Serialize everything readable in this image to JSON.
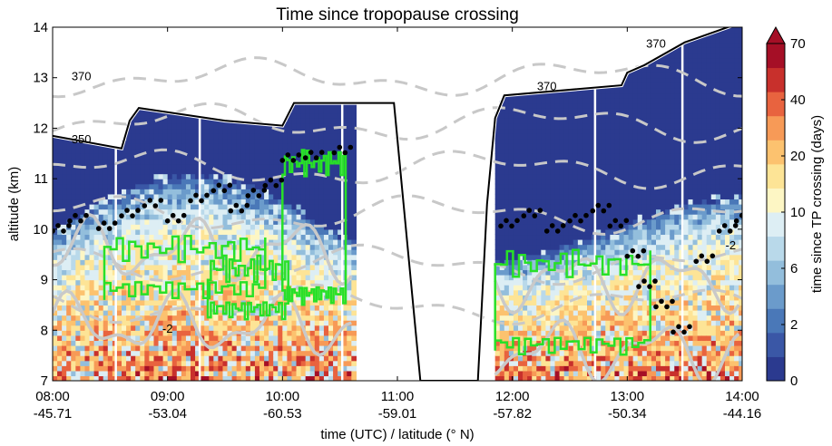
{
  "chart_data": {
    "type": "heatmap",
    "title": "Time since tropopause crossing",
    "xlabel": "time (UTC) / latitude (° N)",
    "ylabel": "altitude (km)",
    "x_ticks": [
      {
        "time": "08:00",
        "lat": "-45.71"
      },
      {
        "time": "09:00",
        "lat": "-53.04"
      },
      {
        "time": "10:00",
        "lat": "-60.53"
      },
      {
        "time": "11:00",
        "lat": "-59.01"
      },
      {
        "time": "12:00",
        "lat": "-57.82"
      },
      {
        "time": "13:00",
        "lat": "-50.34"
      },
      {
        "time": "14:00",
        "lat": "-44.16"
      }
    ],
    "xlim_hours": [
      8,
      14
    ],
    "ylim": [
      7,
      14
    ],
    "y_ticks": [
      7,
      8,
      9,
      10,
      11,
      12,
      13,
      14
    ],
    "colorbar": {
      "label": "time since TP crossing (days)",
      "extend": "max",
      "tick_labels": [
        "0",
        "2",
        "6",
        "10",
        "20",
        "40",
        "70"
      ],
      "levels": [
        0,
        1,
        2,
        4,
        6,
        8,
        10,
        15,
        20,
        30,
        40,
        50,
        60,
        70
      ],
      "colors": [
        "#2b3a8f",
        "#3a57a6",
        "#4a78b8",
        "#6b9bcb",
        "#93bedc",
        "#b9d9ea",
        "#ddeef4",
        "#fdf6c4",
        "#fde496",
        "#fcc26f",
        "#f79a57",
        "#e8633f",
        "#c8302c",
        "#a50f26"
      ]
    },
    "isentrope_labels": [
      "370",
      "350",
      "370",
      "370"
    ],
    "pv_contour_labels": [
      "-2",
      "-2"
    ],
    "annotations": {
      "tropopause_line": "flight / tropopause altitude (black-white line)",
      "green_contours": "outline of tropospheric-influence region",
      "black_dots": "observed tropopause points"
    },
    "data_windows_hours": [
      [
        8.0,
        10.62
      ],
      [
        11.85,
        14.0
      ]
    ],
    "flight_altitude_km": [
      [
        8.0,
        11.85
      ],
      [
        8.6,
        11.6
      ],
      [
        8.67,
        12.15
      ],
      [
        8.75,
        12.4
      ],
      [
        9.5,
        12.15
      ],
      [
        10.0,
        12.05
      ],
      [
        10.1,
        12.5
      ],
      [
        10.6,
        12.5
      ],
      [
        10.97,
        12.5
      ],
      [
        11.2,
        7.0
      ],
      [
        11.7,
        7.0
      ],
      [
        11.78,
        10.5
      ],
      [
        11.85,
        12.2
      ],
      [
        11.93,
        12.65
      ],
      [
        12.95,
        12.85
      ],
      [
        13.0,
        13.1
      ],
      [
        13.15,
        13.25
      ],
      [
        13.5,
        13.7
      ],
      [
        14.0,
        14.1
      ]
    ],
    "tropopause_dots_km": [
      [
        8.0,
        10.0
      ],
      [
        8.15,
        10.2
      ],
      [
        8.4,
        10.05
      ],
      [
        8.6,
        10.3
      ],
      [
        8.8,
        10.5
      ],
      [
        9.0,
        10.2
      ],
      [
        9.2,
        10.6
      ],
      [
        9.4,
        10.8
      ],
      [
        9.55,
        10.4
      ],
      [
        9.7,
        10.7
      ],
      [
        9.85,
        10.9
      ],
      [
        10.0,
        11.4
      ],
      [
        10.2,
        11.45
      ],
      [
        10.45,
        11.55
      ],
      [
        11.9,
        10.1
      ],
      [
        12.1,
        10.3
      ],
      [
        12.3,
        10.0
      ],
      [
        12.5,
        10.2
      ],
      [
        12.7,
        10.4
      ],
      [
        12.85,
        10.1
      ],
      [
        13.0,
        9.5
      ],
      [
        13.1,
        8.9
      ],
      [
        13.25,
        8.5
      ],
      [
        13.4,
        8.0
      ],
      [
        13.6,
        9.4
      ],
      [
        13.8,
        10.0
      ],
      [
        13.95,
        10.2
      ]
    ]
  }
}
